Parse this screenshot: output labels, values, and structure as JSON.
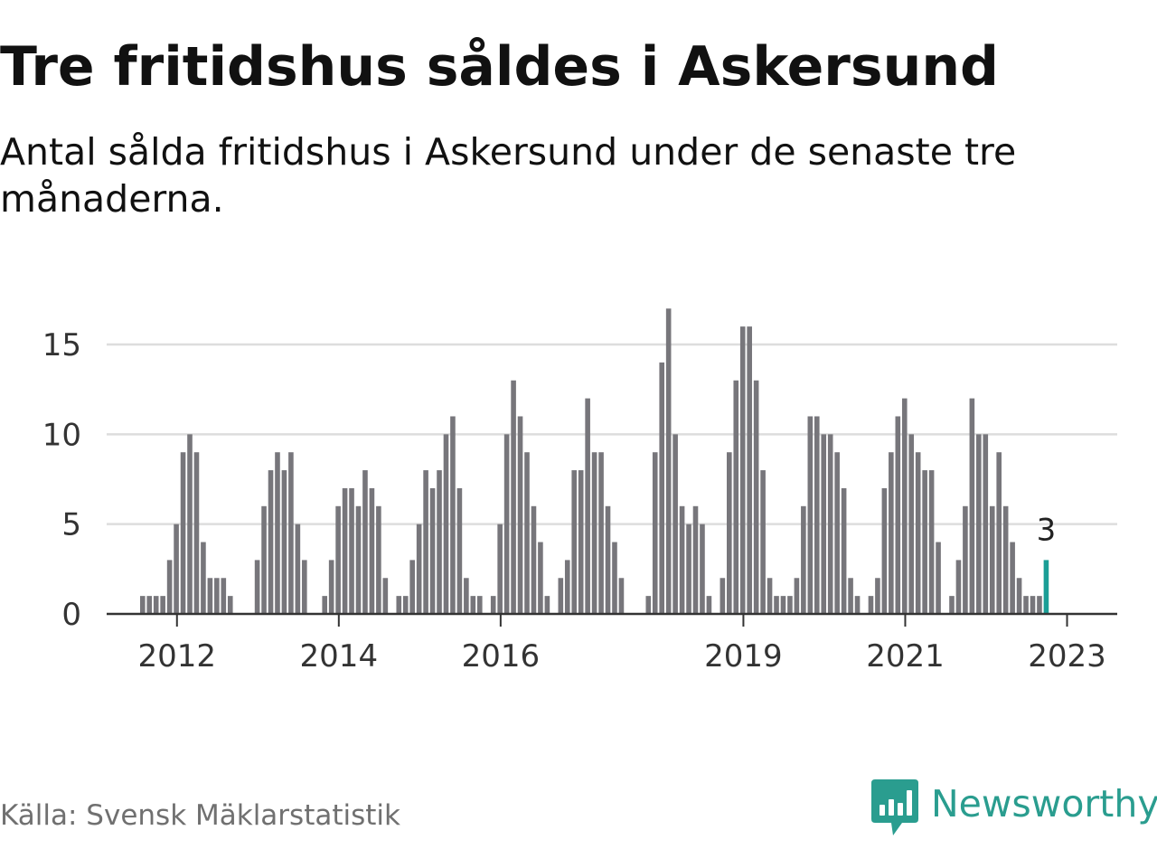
{
  "title": "Tre fritidshus såldes i Askersund",
  "subtitle": "Antal sålda fritidshus i Askersund under de senaste tre månaderna.",
  "source": "Källa: Svensk Mäklarstatistik",
  "brand": {
    "name": "Newsworthy",
    "icon": "newsworthy-logo-icon",
    "color": "#2a9d8f"
  },
  "colors": {
    "bar": "#77767b",
    "highlight": "#1a9e96",
    "grid": "#dddddd",
    "baseline": "#333333"
  },
  "chart_data": {
    "type": "bar",
    "title": "Tre fritidshus såldes i Askersund",
    "subtitle": "Antal sålda fritidshus i Askersund under de senaste tre månaderna.",
    "xlabel": "",
    "ylabel": "",
    "ylim": [
      0,
      17
    ],
    "yticks": [
      0,
      5,
      10,
      15
    ],
    "grid": true,
    "legend": "none",
    "start": "2011-10",
    "xticks": [
      {
        "label": "2012",
        "x": "2012-01"
      },
      {
        "label": "2014",
        "x": "2014-01"
      },
      {
        "label": "2016",
        "x": "2016-01"
      },
      {
        "label": "2019",
        "x": "2019-01"
      },
      {
        "label": "2021",
        "x": "2021-01"
      },
      {
        "label": "2023",
        "x": "2023-01"
      }
    ],
    "values": [
      0,
      0,
      0,
      1,
      1,
      1,
      1,
      3,
      5,
      9,
      10,
      9,
      4,
      2,
      2,
      2,
      1,
      0,
      0,
      0,
      3,
      6,
      8,
      9,
      8,
      9,
      5,
      3,
      0,
      0,
      1,
      3,
      6,
      7,
      7,
      6,
      8,
      7,
      6,
      2,
      0,
      1,
      1,
      3,
      5,
      8,
      7,
      8,
      10,
      11,
      7,
      2,
      1,
      1,
      0,
      1,
      5,
      10,
      13,
      11,
      9,
      6,
      4,
      1,
      0,
      2,
      3,
      8,
      8,
      12,
      9,
      9,
      6,
      4,
      2,
      0,
      0,
      0,
      1,
      9,
      14,
      17,
      10,
      6,
      5,
      6,
      5,
      1,
      0,
      2,
      9,
      13,
      16,
      16,
      13,
      8,
      2,
      1,
      1,
      1,
      2,
      6,
      11,
      11,
      10,
      10,
      9,
      7,
      2,
      1,
      0,
      1,
      2,
      7,
      9,
      11,
      12,
      10,
      9,
      8,
      8,
      4,
      0,
      1,
      3,
      6,
      12,
      10,
      10,
      6,
      9,
      6,
      4,
      2,
      1,
      1,
      1,
      3
    ],
    "annotation": {
      "label": "3",
      "value": 3,
      "x": "last"
    }
  }
}
